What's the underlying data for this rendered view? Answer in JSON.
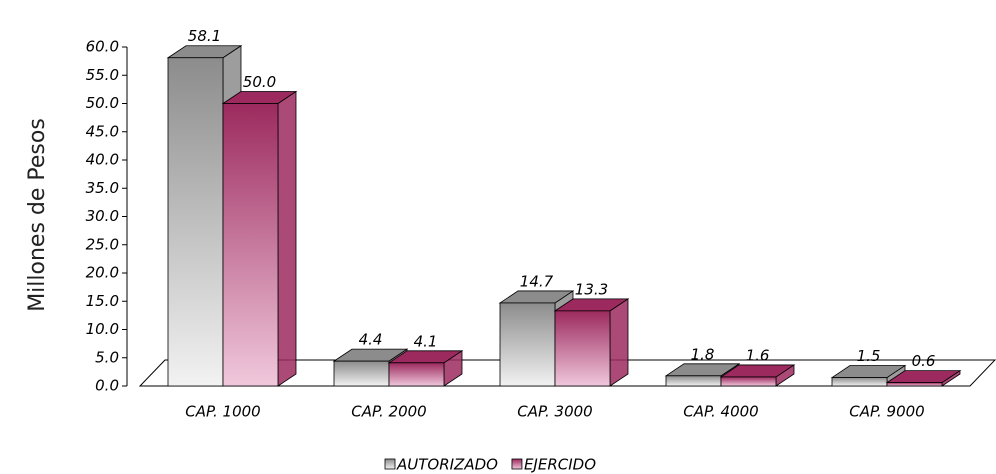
{
  "chart_data": {
    "type": "bar3d",
    "y_label": "Millones de Pesos",
    "categories": [
      "CAP. 1000",
      "CAP. 2000",
      "CAP. 3000",
      "CAP. 4000",
      "CAP. 9000"
    ],
    "series": [
      {
        "name": "AUTORIZADO",
        "color": "#8c8c8c",
        "values": [
          58.1,
          4.4,
          14.7,
          1.8,
          1.5
        ],
        "value_labels": [
          "58.1",
          "4.4",
          "14.7",
          "1.8",
          "1.5"
        ]
      },
      {
        "name": "EJERCIDO",
        "color": "#9c2a5e",
        "values": [
          50.0,
          4.1,
          13.3,
          1.6,
          0.6
        ],
        "value_labels": [
          "50.0",
          "4.1",
          "13.3",
          "1.6",
          "0.6"
        ]
      }
    ],
    "ylim": [
      0,
      60
    ],
    "yticks": [
      {
        "value": 0,
        "label": "0.0"
      },
      {
        "value": 5,
        "label": "5.0"
      },
      {
        "value": 10,
        "label": "10.0"
      },
      {
        "value": 15,
        "label": "15.0"
      },
      {
        "value": 20,
        "label": "20.0"
      },
      {
        "value": 25,
        "label": "25.0"
      },
      {
        "value": 30,
        "label": "30.0"
      },
      {
        "value": 35,
        "label": "35.0"
      },
      {
        "value": 40,
        "label": "40.0"
      },
      {
        "value": 45,
        "label": "45.0"
      },
      {
        "value": 50,
        "label": "50.0"
      },
      {
        "value": 55,
        "label": "55.0"
      },
      {
        "value": 60,
        "label": "60.0"
      }
    ],
    "legend": "bottom"
  }
}
